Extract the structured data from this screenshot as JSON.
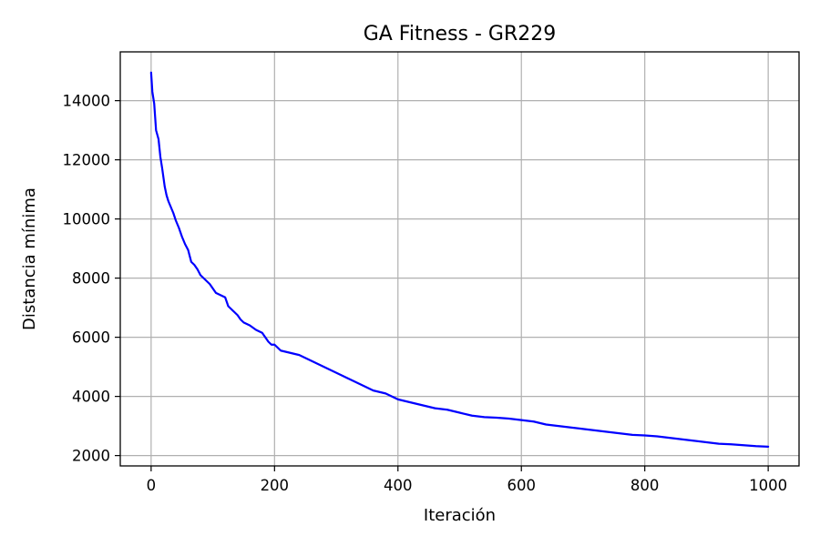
{
  "chart_data": {
    "type": "line",
    "title": "GA Fitness - GR229",
    "xlabel": "Iteración",
    "ylabel": "Distancia mínima",
    "xlim": [
      -50,
      1050
    ],
    "ylim": [
      1650,
      15650
    ],
    "grid": true,
    "x_ticks": [
      0,
      200,
      400,
      600,
      800,
      1000
    ],
    "x_tick_labels": [
      "0",
      "200",
      "400",
      "600",
      "800",
      "1000"
    ],
    "y_ticks": [
      2000,
      4000,
      6000,
      8000,
      10000,
      12000,
      14000
    ],
    "y_tick_labels": [
      "2000",
      "4000",
      "6000",
      "8000",
      "10000",
      "12000",
      "14000"
    ],
    "line_color": "#0000ff",
    "series": [
      {
        "color": "#0000ff",
        "x": [
          0,
          2,
          5,
          8,
          12,
          15,
          18,
          22,
          25,
          28,
          32,
          36,
          40,
          45,
          50,
          55,
          60,
          65,
          70,
          75,
          80,
          85,
          90,
          95,
          100,
          105,
          110,
          115,
          120,
          125,
          130,
          135,
          140,
          145,
          150,
          160,
          170,
          180,
          190,
          195,
          200,
          210,
          220,
          230,
          240,
          250,
          260,
          270,
          280,
          290,
          300,
          310,
          320,
          330,
          340,
          350,
          360,
          370,
          380,
          390,
          400,
          420,
          440,
          460,
          480,
          500,
          520,
          540,
          560,
          580,
          600,
          620,
          640,
          660,
          680,
          700,
          720,
          740,
          760,
          780,
          800,
          820,
          840,
          860,
          880,
          900,
          920,
          940,
          960,
          980,
          1000
        ],
        "y": [
          14950,
          14300,
          13900,
          13000,
          12700,
          12100,
          11700,
          11100,
          10800,
          10600,
          10400,
          10200,
          9950,
          9700,
          9400,
          9150,
          8950,
          8550,
          8450,
          8300,
          8100,
          8000,
          7900,
          7800,
          7650,
          7500,
          7450,
          7400,
          7350,
          7050,
          6950,
          6850,
          6750,
          6600,
          6500,
          6400,
          6250,
          6150,
          5850,
          5750,
          5750,
          5550,
          5500,
          5450,
          5400,
          5300,
          5200,
          5100,
          5000,
          4900,
          4800,
          4700,
          4600,
          4500,
          4400,
          4300,
          4200,
          4150,
          4100,
          4000,
          3900,
          3800,
          3700,
          3600,
          3550,
          3450,
          3350,
          3300,
          3280,
          3250,
          3200,
          3150,
          3050,
          3000,
          2950,
          2900,
          2850,
          2800,
          2750,
          2700,
          2680,
          2650,
          2600,
          2550,
          2500,
          2450,
          2400,
          2380,
          2350,
          2320,
          2300
        ]
      }
    ]
  }
}
